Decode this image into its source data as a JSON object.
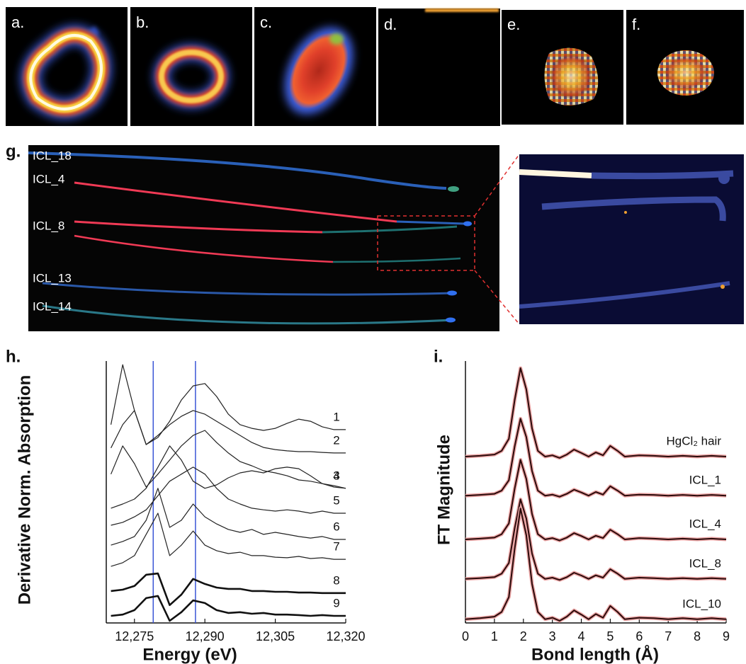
{
  "image_panels": [
    {
      "label": "a."
    },
    {
      "label": "b."
    },
    {
      "label": "c."
    },
    {
      "label": "d."
    },
    {
      "label": "e."
    },
    {
      "label": "f."
    }
  ],
  "hair_panel": {
    "label": "g.",
    "samples": [
      "ICL_18",
      "ICL_4",
      "ICL_8",
      "ICL_13",
      "ICL_14"
    ]
  },
  "chart_data": [
    {
      "type": "line",
      "label": "h.",
      "x_label": "Energy (eV)",
      "y_label": "Derivative Norm. Absorption",
      "x": [
        12270,
        12272.5,
        12275,
        12277.5,
        12280,
        12282.5,
        12285,
        12287.5,
        12290,
        12292.5,
        12295,
        12297.5,
        12300,
        12302.5,
        12305,
        12307.5,
        12310,
        12312.5,
        12315,
        12317.5,
        12320
      ],
      "xlim": [
        12269,
        12320
      ],
      "xticks": [
        {
          "value": 12275,
          "label": "12,275"
        },
        {
          "value": 12290,
          "label": "12,290"
        },
        {
          "value": 12305,
          "label": "12,305"
        },
        {
          "value": 12320,
          "label": "12,320"
        }
      ],
      "ylim": [
        0,
        100
      ],
      "vlines": [
        12279,
        12288
      ],
      "vline_color": "#3a55d6",
      "series": [
        {
          "name": "1",
          "color": "#222222",
          "width": 1.2,
          "values": [
            75.7,
            98.6,
            81.1,
            68.1,
            70.8,
            77.0,
            85.1,
            90.5,
            91.4,
            86.5,
            79.7,
            75.7,
            74.3,
            73.5,
            74.3,
            76.2,
            77.8,
            77.0,
            74.9,
            73.8,
            73.8
          ]
        },
        {
          "name": "2",
          "color": "#222222",
          "width": 1.2,
          "values": [
            66.8,
            75.7,
            81.1,
            68.1,
            71.6,
            75.7,
            78.9,
            81.1,
            79.7,
            77.0,
            74.3,
            71.6,
            68.9,
            67.0,
            66.2,
            65.7,
            65.4,
            65.4,
            65.1,
            64.9,
            64.9
          ]
        },
        {
          "name": "3",
          "color": "#222222",
          "width": 1.2,
          "values": [
            56.8,
            67.6,
            60.8,
            51.9,
            56.8,
            62.2,
            67.6,
            71.6,
            73.5,
            68.9,
            64.9,
            61.6,
            60.0,
            58.1,
            57.3,
            56.2,
            54.6,
            54.1,
            53.2,
            52.4,
            51.4
          ]
        },
        {
          "name": "4",
          "color": "#222222",
          "width": 1.2,
          "values": [
            43.8,
            45.4,
            47.3,
            51.4,
            59.5,
            67.6,
            62.2,
            54.1,
            51.4,
            52.7,
            55.4,
            57.3,
            58.1,
            57.3,
            58.9,
            59.5,
            58.9,
            56.2,
            53.2,
            51.9,
            51.4
          ]
        },
        {
          "name": "5",
          "color": "#222222",
          "width": 1.2,
          "values": [
            37.3,
            38.4,
            40.5,
            43.2,
            48.6,
            54.1,
            56.8,
            59.5,
            56.8,
            51.4,
            47.3,
            45.4,
            43.8,
            43.2,
            42.7,
            43.2,
            42.7,
            41.9,
            42.7,
            41.9,
            41.9
          ]
        },
        {
          "name": "6",
          "color": "#222222",
          "width": 1.2,
          "values": [
            29.7,
            31.1,
            33.0,
            39.2,
            51.4,
            36.5,
            39.2,
            45.4,
            40.5,
            37.8,
            35.7,
            34.6,
            35.7,
            33.8,
            34.6,
            33.8,
            33.0,
            32.4,
            33.0,
            31.9,
            31.9
          ]
        },
        {
          "name": "7",
          "color": "#222222",
          "width": 1.2,
          "values": [
            21.6,
            23.0,
            25.7,
            33.8,
            41.9,
            25.7,
            29.7,
            35.1,
            29.7,
            27.6,
            26.5,
            27.0,
            25.7,
            25.7,
            25.1,
            24.9,
            25.4,
            24.6,
            24.9,
            24.3,
            24.3
          ]
        },
        {
          "name": "8",
          "color": "#111111",
          "width": 2.6,
          "values": [
            12.2,
            12.7,
            14.1,
            18.4,
            18.9,
            6.8,
            10.8,
            16.8,
            14.9,
            13.5,
            13.0,
            13.0,
            12.2,
            12.2,
            11.9,
            11.9,
            11.6,
            11.6,
            11.4,
            11.4,
            11.4
          ]
        },
        {
          "name": "9",
          "color": "#111111",
          "width": 2.6,
          "values": [
            2.7,
            3.2,
            4.9,
            9.5,
            10.3,
            0.8,
            4.1,
            8.6,
            7.6,
            4.9,
            3.8,
            4.1,
            3.5,
            3.8,
            3.2,
            3.2,
            3.0,
            2.7,
            3.0,
            2.7,
            2.7
          ]
        }
      ]
    },
    {
      "type": "line",
      "label": "i.",
      "x_label": "Bond length (Å)",
      "y_label": "FT Magnitude",
      "x": [
        0,
        0.5,
        1,
        1.25,
        1.5,
        1.7,
        1.9,
        2.1,
        2.3,
        2.5,
        2.75,
        3,
        3.25,
        3.5,
        3.75,
        4,
        4.25,
        4.5,
        4.75,
        5,
        5.25,
        5.5,
        6,
        6.5,
        7,
        7.5,
        8,
        8.5,
        9
      ],
      "xlim": [
        0,
        9
      ],
      "xticks": [
        0,
        1,
        2,
        3,
        4,
        5,
        6,
        7,
        8,
        9
      ],
      "ylim": [
        0,
        100
      ],
      "shadow_color": "#eaa5a5",
      "series": [
        {
          "name": "HgCl₂ hair",
          "color": "#2a0a0a",
          "width": 2,
          "values": [
            63.5,
            63.8,
            64.3,
            65.7,
            70.3,
            85.1,
            97.3,
            89.2,
            74.3,
            65.7,
            63.5,
            64.0,
            63.0,
            64.3,
            66.2,
            64.9,
            63.5,
            65.1,
            64.0,
            67.6,
            65.7,
            63.5,
            64.0,
            63.8,
            63.5,
            63.8,
            63.5,
            63.8,
            63.5
          ]
        },
        {
          "name": "ICL_1",
          "color": "#2a0a0a",
          "width": 2,
          "values": [
            48.6,
            48.9,
            49.3,
            50.5,
            54.5,
            67.4,
            78.0,
            71.0,
            58.0,
            50.5,
            48.6,
            49.0,
            48.2,
            49.3,
            50.9,
            49.8,
            48.6,
            50.0,
            49.0,
            52.2,
            50.5,
            48.6,
            49.0,
            48.9,
            48.6,
            48.9,
            48.6,
            48.9,
            48.6
          ]
        },
        {
          "name": "ICL_4",
          "color": "#2a0a0a",
          "width": 2,
          "values": [
            31.9,
            32.2,
            32.6,
            33.9,
            38.0,
            51.3,
            62.3,
            55.0,
            41.6,
            33.9,
            31.9,
            32.4,
            31.5,
            32.6,
            34.3,
            33.2,
            31.9,
            33.3,
            32.4,
            35.6,
            33.9,
            31.9,
            32.4,
            32.2,
            31.9,
            32.2,
            31.9,
            32.2,
            31.9
          ]
        },
        {
          "name": "ICL_8",
          "color": "#2a0a0a",
          "width": 2,
          "values": [
            16.8,
            17.1,
            17.5,
            18.8,
            22.9,
            36.2,
            47.2,
            39.9,
            26.5,
            18.8,
            16.8,
            17.3,
            16.4,
            17.5,
            19.2,
            18.1,
            16.8,
            18.2,
            17.3,
            20.5,
            18.8,
            16.8,
            17.3,
            17.1,
            16.8,
            17.1,
            16.8,
            17.1,
            16.8
          ]
        },
        {
          "name": "ICL_10",
          "color": "#2a0a0a",
          "width": 2,
          "values": [
            1.4,
            1.8,
            2.4,
            4.2,
            9.9,
            28.4,
            43.7,
            33.5,
            14.9,
            4.2,
            1.4,
            2.0,
            0.8,
            2.4,
            4.8,
            3.2,
            1.4,
            3.4,
            2.0,
            6.5,
            4.2,
            1.4,
            2.0,
            1.8,
            1.4,
            1.8,
            1.4,
            1.8,
            1.4
          ]
        }
      ]
    }
  ]
}
